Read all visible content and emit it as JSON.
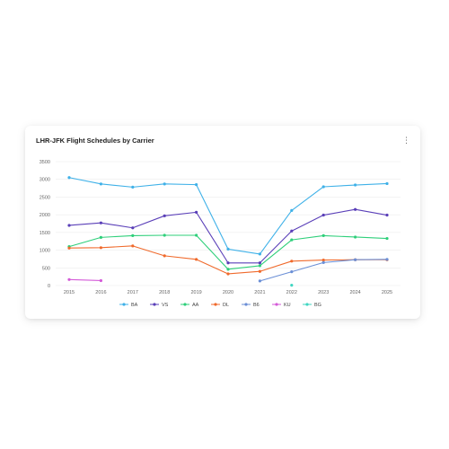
{
  "card": {
    "title": "LHR-JFK Flight Schedules by Carrier",
    "menu_icon": "kebab-menu-icon",
    "menu_glyph": "⋮"
  },
  "chart_data": {
    "type": "line",
    "title": "LHR-JFK Flight Schedules by Carrier",
    "xlabel": "",
    "ylabel": "",
    "x": [
      "2015",
      "2016",
      "2017",
      "2018",
      "2019",
      "2020",
      "2021",
      "2022",
      "2023",
      "2024",
      "2025"
    ],
    "ylim": [
      0,
      3500
    ],
    "yticks": [
      0,
      500,
      1000,
      1500,
      2000,
      2500,
      3000,
      3500
    ],
    "grid": "horizontal",
    "legend": "bottom",
    "series": [
      {
        "name": "BA",
        "color": "#3fb1e8",
        "values": [
          3050,
          2870,
          2780,
          2870,
          2850,
          1030,
          890,
          2120,
          2790,
          2840,
          2880
        ]
      },
      {
        "name": "VS",
        "color": "#5a3fb8",
        "values": [
          1700,
          1770,
          1630,
          1970,
          2070,
          640,
          640,
          1540,
          1990,
          2150,
          1990
        ]
      },
      {
        "name": "AA",
        "color": "#2ecf7a",
        "values": [
          1100,
          1360,
          1410,
          1420,
          1420,
          460,
          560,
          1290,
          1410,
          1370,
          1330
        ]
      },
      {
        "name": "DL",
        "color": "#f06a2c",
        "values": [
          1060,
          1070,
          1120,
          840,
          740,
          330,
          400,
          690,
          720,
          730,
          730
        ]
      },
      {
        "name": "B6",
        "color": "#6b8fd6",
        "values": [
          null,
          null,
          null,
          null,
          null,
          null,
          130,
          390,
          650,
          730,
          740
        ]
      },
      {
        "name": "KU",
        "color": "#d45ad8",
        "values": [
          170,
          140,
          null,
          null,
          null,
          null,
          null,
          null,
          null,
          null,
          null
        ]
      },
      {
        "name": "BG",
        "color": "#40d6c2",
        "values": [
          null,
          null,
          null,
          null,
          null,
          null,
          null,
          10,
          null,
          null,
          null
        ]
      }
    ]
  }
}
